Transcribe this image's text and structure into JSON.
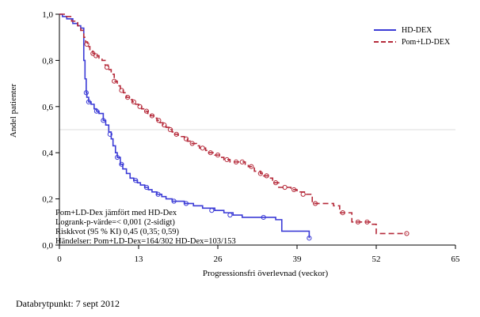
{
  "chart_data": {
    "type": "line",
    "subtype": "kaplan-meier",
    "xlabel": "Progressionsfri överlevnad (veckor)",
    "ylabel": "Andel patienter",
    "xlim": [
      0,
      65
    ],
    "ylim": [
      0,
      1.0
    ],
    "x_ticks": [
      "0",
      "13",
      "26",
      "39",
      "52",
      "65"
    ],
    "x_tick_values": [
      0,
      13,
      26,
      39,
      52,
      65
    ],
    "y_ticks": [
      "0,0",
      "0,2",
      "0,4",
      "0,6",
      "0,8",
      "1,0"
    ],
    "y_tick_values": [
      0,
      0.2,
      0.4,
      0.6,
      0.8,
      1.0
    ],
    "reference_line_y": 0.5,
    "legend_position": "top-right",
    "series": [
      {
        "name": "HD-DEX",
        "color": "#3b3bd6",
        "line_style": "solid",
        "steps": [
          [
            0,
            1.0
          ],
          [
            0.5,
            0.99
          ],
          [
            1.2,
            0.98
          ],
          [
            2.2,
            0.96
          ],
          [
            3.0,
            0.95
          ],
          [
            3.5,
            0.94
          ],
          [
            4.0,
            0.8
          ],
          [
            4.2,
            0.72
          ],
          [
            4.4,
            0.66
          ],
          [
            4.5,
            0.64
          ],
          [
            4.8,
            0.62
          ],
          [
            5.2,
            0.61
          ],
          [
            5.7,
            0.59
          ],
          [
            6.1,
            0.58
          ],
          [
            6.5,
            0.57
          ],
          [
            7.2,
            0.54
          ],
          [
            7.6,
            0.52
          ],
          [
            8.1,
            0.49
          ],
          [
            8.5,
            0.46
          ],
          [
            8.8,
            0.43
          ],
          [
            9.2,
            0.4
          ],
          [
            9.5,
            0.38
          ],
          [
            10.0,
            0.35
          ],
          [
            10.4,
            0.33
          ],
          [
            11.0,
            0.31
          ],
          [
            11.6,
            0.29
          ],
          [
            12.2,
            0.28
          ],
          [
            12.8,
            0.27
          ],
          [
            13.3,
            0.26
          ],
          [
            14.0,
            0.25
          ],
          [
            14.6,
            0.24
          ],
          [
            15.2,
            0.23
          ],
          [
            16.0,
            0.22
          ],
          [
            16.8,
            0.21
          ],
          [
            17.5,
            0.2
          ],
          [
            18.5,
            0.19
          ],
          [
            20.5,
            0.18
          ],
          [
            22.0,
            0.17
          ],
          [
            23.5,
            0.16
          ],
          [
            25.5,
            0.15
          ],
          [
            27.0,
            0.14
          ],
          [
            28.5,
            0.13
          ],
          [
            30.0,
            0.12
          ],
          [
            35.5,
            0.11
          ],
          [
            36.5,
            0.06
          ],
          [
            41.0,
            0.03
          ]
        ],
        "censored": [
          [
            4.4,
            0.66
          ],
          [
            4.8,
            0.62
          ],
          [
            6.1,
            0.58
          ],
          [
            7.2,
            0.54
          ],
          [
            8.3,
            0.48
          ],
          [
            9.5,
            0.38
          ],
          [
            10.2,
            0.35
          ],
          [
            12.5,
            0.28
          ],
          [
            14.3,
            0.25
          ],
          [
            16.2,
            0.22
          ],
          [
            18.8,
            0.19
          ],
          [
            20.8,
            0.18
          ],
          [
            25.0,
            0.15
          ],
          [
            28.0,
            0.13
          ],
          [
            33.5,
            0.12
          ],
          [
            41.0,
            0.03
          ]
        ],
        "end_x": 41.0
      },
      {
        "name": "Pom+LD-DEX",
        "color": "#b52a3a",
        "line_style": "dashed",
        "steps": [
          [
            0,
            1.0
          ],
          [
            1.0,
            0.99
          ],
          [
            2.0,
            0.97
          ],
          [
            3.0,
            0.95
          ],
          [
            3.5,
            0.93
          ],
          [
            4.0,
            0.9
          ],
          [
            4.3,
            0.88
          ],
          [
            4.6,
            0.86
          ],
          [
            5.0,
            0.84
          ],
          [
            5.5,
            0.83
          ],
          [
            6.0,
            0.82
          ],
          [
            6.5,
            0.81
          ],
          [
            7.0,
            0.8
          ],
          [
            7.5,
            0.78
          ],
          [
            8.0,
            0.76
          ],
          [
            8.5,
            0.74
          ],
          [
            9.0,
            0.71
          ],
          [
            9.5,
            0.69
          ],
          [
            10.0,
            0.67
          ],
          [
            10.5,
            0.66
          ],
          [
            11.0,
            0.64
          ],
          [
            11.5,
            0.63
          ],
          [
            12.0,
            0.62
          ],
          [
            12.5,
            0.61
          ],
          [
            13.0,
            0.6
          ],
          [
            13.5,
            0.59
          ],
          [
            14.0,
            0.58
          ],
          [
            14.5,
            0.57
          ],
          [
            15.0,
            0.56
          ],
          [
            15.5,
            0.55
          ],
          [
            16.0,
            0.54
          ],
          [
            16.5,
            0.53
          ],
          [
            17.0,
            0.52
          ],
          [
            17.5,
            0.51
          ],
          [
            18.0,
            0.5
          ],
          [
            18.5,
            0.49
          ],
          [
            19.0,
            0.48
          ],
          [
            19.5,
            0.47
          ],
          [
            20.5,
            0.46
          ],
          [
            21.0,
            0.45
          ],
          [
            21.5,
            0.44
          ],
          [
            22.5,
            0.43
          ],
          [
            23.0,
            0.42
          ],
          [
            24.0,
            0.41
          ],
          [
            24.5,
            0.4
          ],
          [
            25.5,
            0.39
          ],
          [
            26.5,
            0.38
          ],
          [
            27.0,
            0.37
          ],
          [
            28.0,
            0.36
          ],
          [
            30.5,
            0.35
          ],
          [
            31.0,
            0.34
          ],
          [
            32.0,
            0.32
          ],
          [
            33.0,
            0.31
          ],
          [
            33.5,
            0.3
          ],
          [
            34.5,
            0.29
          ],
          [
            35.0,
            0.27
          ],
          [
            36.0,
            0.25
          ],
          [
            38.0,
            0.24
          ],
          [
            39.0,
            0.23
          ],
          [
            40.5,
            0.22
          ],
          [
            41.5,
            0.18
          ],
          [
            45.0,
            0.17
          ],
          [
            46.0,
            0.14
          ],
          [
            48.0,
            0.1
          ],
          [
            51.0,
            0.09
          ],
          [
            52.0,
            0.05
          ],
          [
            57.0,
            0.05
          ]
        ],
        "censored": [
          [
            4.5,
            0.87
          ],
          [
            5.5,
            0.83
          ],
          [
            6.0,
            0.82
          ],
          [
            7.8,
            0.77
          ],
          [
            9.0,
            0.71
          ],
          [
            10.2,
            0.67
          ],
          [
            11.2,
            0.64
          ],
          [
            12.2,
            0.62
          ],
          [
            13.2,
            0.6
          ],
          [
            14.3,
            0.58
          ],
          [
            15.2,
            0.56
          ],
          [
            16.3,
            0.54
          ],
          [
            17.2,
            0.52
          ],
          [
            18.2,
            0.5
          ],
          [
            19.2,
            0.48
          ],
          [
            20.8,
            0.46
          ],
          [
            21.8,
            0.44
          ],
          [
            23.5,
            0.42
          ],
          [
            24.8,
            0.4
          ],
          [
            26.0,
            0.39
          ],
          [
            27.5,
            0.37
          ],
          [
            29.0,
            0.36
          ],
          [
            30.0,
            0.36
          ],
          [
            31.5,
            0.34
          ],
          [
            33.0,
            0.31
          ],
          [
            34.0,
            0.3
          ],
          [
            35.5,
            0.27
          ],
          [
            37.0,
            0.25
          ],
          [
            38.5,
            0.24
          ],
          [
            40.0,
            0.22
          ],
          [
            42.0,
            0.18
          ],
          [
            46.5,
            0.14
          ],
          [
            49.0,
            0.1
          ],
          [
            50.5,
            0.1
          ],
          [
            57.0,
            0.05
          ]
        ],
        "end_x": 57.0
      }
    ],
    "annotations": [
      "Pom+LD-Dex jämfört med HD-Dex",
      "Logrank-p-värde=< 0,001 (2-sidigt)",
      "Riskkvot (95 % KI) 0,45 (0,35; 0,59)",
      "Händelser: Pom+LD-Dex=164/302 HD-Dex=103/153"
    ]
  },
  "footer": {
    "data_cutoff": "Databrytpunkt: 7 sept 2012"
  }
}
